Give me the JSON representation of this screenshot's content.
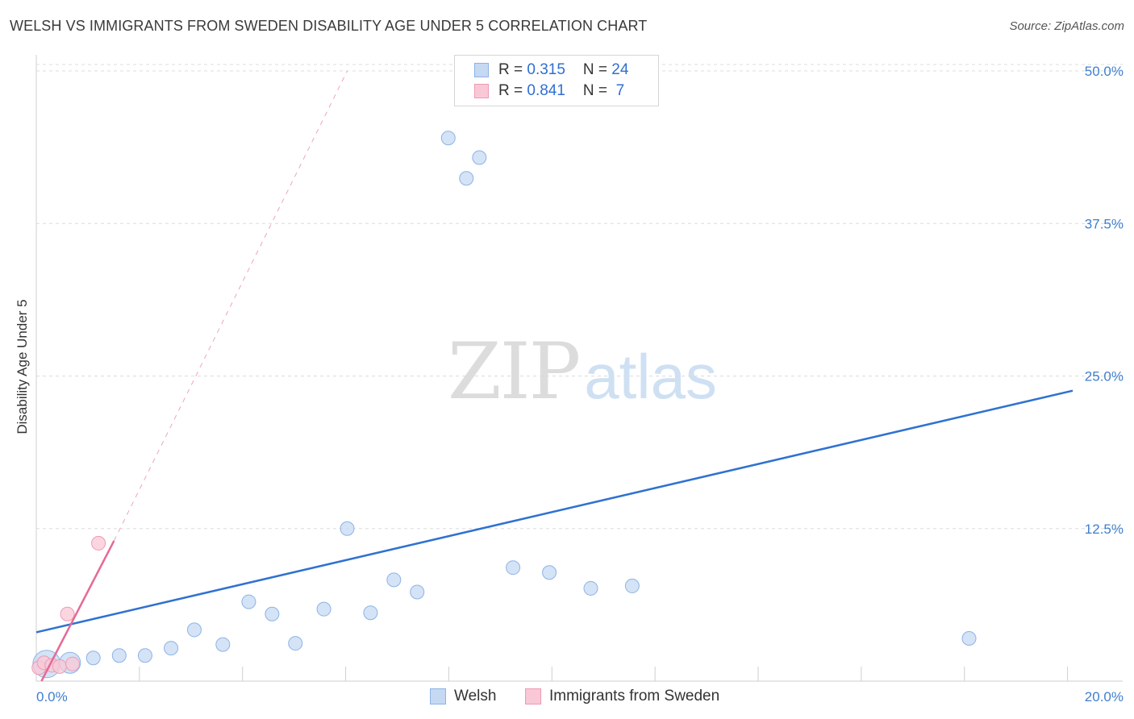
{
  "title": "WELSH VS IMMIGRANTS FROM SWEDEN DISABILITY AGE UNDER 5 CORRELATION CHART",
  "source": "Source: ZipAtlas.com",
  "watermark": {
    "zip": "ZIP",
    "atlas": "atlas"
  },
  "legend": {
    "rows": [
      {
        "r_label": "R = ",
        "r_value": "0.315",
        "n_label": "N = ",
        "n_value": "24"
      },
      {
        "r_label": "R = ",
        "r_value": "0.841",
        "n_label": "N = ",
        "n_value": " 7"
      }
    ]
  },
  "bottom_legend": [
    "Welsh",
    "Immigrants from Sweden"
  ],
  "colors": {
    "welsh_fill": "#c5d9f3",
    "welsh_stroke": "#8db3e6",
    "welsh_line": "#2f72d0",
    "sweden_fill": "#f9c8d6",
    "sweden_stroke": "#ee9ab4",
    "sweden_line": "#e56a96",
    "grid": "#dcdcdc",
    "tick_text": "#3f7fce"
  },
  "chart_data": {
    "type": "scatter",
    "title": "WELSH VS IMMIGRANTS FROM SWEDEN DISABILITY AGE UNDER 5 CORRELATION CHART",
    "xlabel": "",
    "ylabel": "Disability Age Under 5",
    "xlim": [
      0,
      20
    ],
    "ylim": [
      0,
      50
    ],
    "x_tick_labels": [
      "0.0%",
      "20.0%"
    ],
    "y_ticks": [
      12.5,
      25.0,
      37.5,
      50.0
    ],
    "y_tick_labels": [
      "12.5%",
      "25.0%",
      "37.5%",
      "50.0%"
    ],
    "grid": true,
    "series": [
      {
        "name": "Welsh",
        "r": 0.315,
        "n": 24,
        "points": [
          {
            "x": 0.2,
            "y": 1.4,
            "size": "large"
          },
          {
            "x": 0.65,
            "y": 1.5,
            "size": "medium"
          },
          {
            "x": 1.1,
            "y": 1.9
          },
          {
            "x": 1.6,
            "y": 2.1
          },
          {
            "x": 2.1,
            "y": 2.1
          },
          {
            "x": 2.6,
            "y": 2.7
          },
          {
            "x": 3.05,
            "y": 4.2
          },
          {
            "x": 3.6,
            "y": 3.0
          },
          {
            "x": 4.1,
            "y": 6.5
          },
          {
            "x": 4.55,
            "y": 5.5
          },
          {
            "x": 5.0,
            "y": 3.1
          },
          {
            "x": 5.55,
            "y": 5.9
          },
          {
            "x": 6.0,
            "y": 12.5
          },
          {
            "x": 6.45,
            "y": 5.6
          },
          {
            "x": 6.9,
            "y": 8.3
          },
          {
            "x": 7.35,
            "y": 7.3
          },
          {
            "x": 7.95,
            "y": 44.5
          },
          {
            "x": 8.3,
            "y": 41.2
          },
          {
            "x": 8.55,
            "y": 42.9
          },
          {
            "x": 9.2,
            "y": 9.3
          },
          {
            "x": 9.9,
            "y": 8.9
          },
          {
            "x": 10.7,
            "y": 7.6
          },
          {
            "x": 11.5,
            "y": 7.8
          },
          {
            "x": 18.0,
            "y": 3.5
          }
        ],
        "trend": {
          "x0": 0.0,
          "y0": 4.0,
          "x1": 20.0,
          "y1": 23.8
        }
      },
      {
        "name": "Immigrants from Sweden",
        "r": 0.841,
        "n": 7,
        "points": [
          {
            "x": 0.05,
            "y": 1.1
          },
          {
            "x": 0.15,
            "y": 1.5
          },
          {
            "x": 0.3,
            "y": 1.3
          },
          {
            "x": 0.45,
            "y": 1.2
          },
          {
            "x": 0.6,
            "y": 5.5
          },
          {
            "x": 0.7,
            "y": 1.4
          },
          {
            "x": 1.2,
            "y": 11.3
          }
        ],
        "trend": {
          "x0": 0.1,
          "y0": 0.0,
          "x1": 1.5,
          "y1": 11.5
        },
        "trend_extension": {
          "x0": 1.5,
          "y0": 11.5,
          "x1": 6.0,
          "y1": 50.0
        }
      }
    ]
  }
}
